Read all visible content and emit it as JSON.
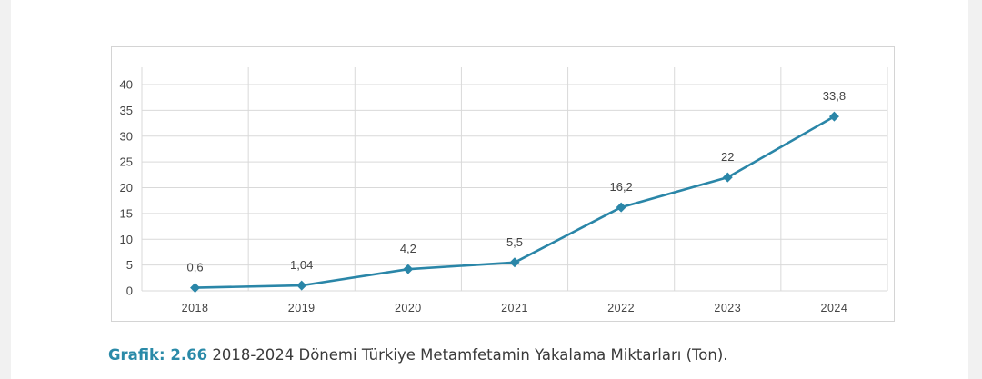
{
  "caption": {
    "label": "Grafik: 2.66",
    "text": "2018-2024 Dönemi Türkiye Metamfetamin Yakalama Miktarları (Ton)."
  },
  "colors": {
    "series": "#2a86a8",
    "grid": "#d9d9d9",
    "caption_label": "#2a8aa8"
  },
  "chart_data": {
    "type": "line",
    "title": "",
    "xlabel": "",
    "ylabel": "",
    "categories": [
      "2018",
      "2019",
      "2020",
      "2021",
      "2022",
      "2023",
      "2024"
    ],
    "series": [
      {
        "values": [
          0.6,
          1.04,
          4.2,
          5.5,
          16.2,
          22,
          33.8
        ],
        "labels": [
          "0,6",
          "1,04",
          "4,2",
          "5,5",
          "16,2",
          "22",
          "33,8"
        ],
        "marker": "diamond"
      }
    ],
    "ylim": [
      0,
      40
    ],
    "yticks": [
      "0",
      "5",
      "10",
      "15",
      "20",
      "25",
      "30",
      "35",
      "40"
    ],
    "grid": true,
    "legend": "none"
  }
}
